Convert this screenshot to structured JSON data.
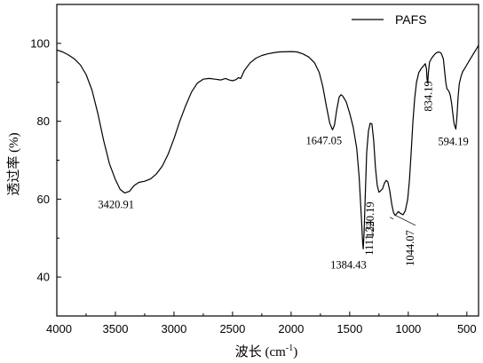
{
  "chart_data": {
    "type": "line",
    "xlabel": "波长 (cm",
    "xlabel_sup": "-1",
    "xlabel_close": ")",
    "ylabel": "透过率 (%)",
    "xlim": [
      4000,
      400
    ],
    "ylim": [
      30,
      110
    ],
    "xticks": [
      4000,
      3500,
      3000,
      2500,
      2000,
      1500,
      1000,
      500
    ],
    "yticks": [
      40,
      60,
      80,
      100
    ],
    "legend": {
      "position": "top-right"
    },
    "series": [
      {
        "name": "PAFS",
        "color": "#000000",
        "points": [
          [
            4000,
            98.3
          ],
          [
            3950,
            97.8
          ],
          [
            3900,
            97.0
          ],
          [
            3850,
            96.0
          ],
          [
            3800,
            94.5
          ],
          [
            3750,
            92.0
          ],
          [
            3700,
            88.0
          ],
          [
            3650,
            82.0
          ],
          [
            3600,
            75.0
          ],
          [
            3550,
            69.0
          ],
          [
            3500,
            65.0
          ],
          [
            3460,
            62.5
          ],
          [
            3420.91,
            61.6
          ],
          [
            3380,
            62.0
          ],
          [
            3340,
            63.5
          ],
          [
            3300,
            64.3
          ],
          [
            3250,
            64.6
          ],
          [
            3200,
            65.2
          ],
          [
            3150,
            66.5
          ],
          [
            3100,
            68.5
          ],
          [
            3050,
            71.5
          ],
          [
            3000,
            75.5
          ],
          [
            2950,
            80.0
          ],
          [
            2900,
            84.0
          ],
          [
            2850,
            87.5
          ],
          [
            2800,
            89.8
          ],
          [
            2750,
            90.8
          ],
          [
            2700,
            91.0
          ],
          [
            2650,
            90.8
          ],
          [
            2600,
            90.6
          ],
          [
            2560,
            91.0
          ],
          [
            2530,
            90.6
          ],
          [
            2500,
            90.4
          ],
          [
            2470,
            90.7
          ],
          [
            2450,
            91.2
          ],
          [
            2430,
            91.0
          ],
          [
            2400,
            93.0
          ],
          [
            2350,
            95.0
          ],
          [
            2300,
            96.2
          ],
          [
            2250,
            96.9
          ],
          [
            2200,
            97.3
          ],
          [
            2150,
            97.6
          ],
          [
            2100,
            97.8
          ],
          [
            2000,
            97.9
          ],
          [
            1950,
            97.8
          ],
          [
            1900,
            97.3
          ],
          [
            1850,
            96.5
          ],
          [
            1800,
            95.0
          ],
          [
            1760,
            92.5
          ],
          [
            1730,
            89.0
          ],
          [
            1700,
            84.0
          ],
          [
            1670,
            79.5
          ],
          [
            1647.05,
            77.8
          ],
          [
            1630,
            79.0
          ],
          [
            1610,
            83.0
          ],
          [
            1590,
            86.2
          ],
          [
            1575,
            86.8
          ],
          [
            1560,
            86.5
          ],
          [
            1530,
            85.0
          ],
          [
            1500,
            82.0
          ],
          [
            1470,
            78.5
          ],
          [
            1440,
            73.0
          ],
          [
            1420,
            66.0
          ],
          [
            1400,
            55.0
          ],
          [
            1390,
            49.0
          ],
          [
            1384.43,
            47.2
          ],
          [
            1378,
            51.0
          ],
          [
            1365,
            63.0
          ],
          [
            1355,
            72.0
          ],
          [
            1340,
            77.5
          ],
          [
            1325,
            79.5
          ],
          [
            1310,
            79.3
          ],
          [
            1295,
            75.0
          ],
          [
            1280,
            68.0
          ],
          [
            1265,
            63.5
          ],
          [
            1250,
            61.8
          ],
          [
            1240,
            62.0
          ],
          [
            1225,
            62.5
          ],
          [
            1220.19,
            62.6
          ],
          [
            1205,
            64.0
          ],
          [
            1190,
            64.8
          ],
          [
            1175,
            64.5
          ],
          [
            1160,
            62.5
          ],
          [
            1140,
            58.5
          ],
          [
            1125,
            56.5
          ],
          [
            1111.34,
            55.8
          ],
          [
            1100,
            56.2
          ],
          [
            1085,
            56.8
          ],
          [
            1065,
            56.3
          ],
          [
            1044.07,
            56.0
          ],
          [
            1025,
            57.0
          ],
          [
            1005,
            60.0
          ],
          [
            990,
            65.0
          ],
          [
            975,
            72.0
          ],
          [
            960,
            80.0
          ],
          [
            945,
            86.0
          ],
          [
            930,
            90.0
          ],
          [
            910,
            92.5
          ],
          [
            890,
            93.5
          ],
          [
            870,
            94.2
          ],
          [
            855,
            94.8
          ],
          [
            845,
            93.5
          ],
          [
            840,
            91.0
          ],
          [
            834.19,
            89.8
          ],
          [
            828,
            92.5
          ],
          [
            818,
            95.2
          ],
          [
            800,
            96.2
          ],
          [
            780,
            97.0
          ],
          [
            760,
            97.6
          ],
          [
            740,
            97.8
          ],
          [
            720,
            97.5
          ],
          [
            700,
            96.0
          ],
          [
            690,
            93.0
          ],
          [
            680,
            90.0
          ],
          [
            670,
            88.3
          ],
          [
            660,
            88.0
          ],
          [
            650,
            87.5
          ],
          [
            640,
            86.5
          ],
          [
            630,
            84.5
          ],
          [
            620,
            82.0
          ],
          [
            610,
            79.5
          ],
          [
            600,
            78.5
          ],
          [
            594.19,
            78.0
          ],
          [
            585,
            81.0
          ],
          [
            575,
            86.0
          ],
          [
            565,
            89.5
          ],
          [
            550,
            91.5
          ],
          [
            535,
            92.8
          ],
          [
            520,
            93.5
          ],
          [
            500,
            94.5
          ],
          [
            480,
            95.5
          ],
          [
            460,
            96.5
          ],
          [
            440,
            97.5
          ],
          [
            420,
            98.5
          ],
          [
            400,
            99.5
          ]
        ]
      }
    ],
    "annotations": [
      {
        "text": "3420.91",
        "x": 3420.91,
        "y": 61.6,
        "rotate": false
      },
      {
        "text": "1647.05",
        "x": 1647.05,
        "y": 77.8,
        "rotate": false
      },
      {
        "text": "1384.43",
        "x": 1384.43,
        "y": 47.2,
        "rotate": false
      },
      {
        "text": "1220.19",
        "x": 1220.19,
        "y": 62.6,
        "rotate": true
      },
      {
        "text": "1111.34",
        "x": 1111.34,
        "y": 55.8,
        "rotate": true
      },
      {
        "text": "1044.07",
        "x": 1044.07,
        "y": 56.0,
        "rotate": true
      },
      {
        "text": "834.19",
        "x": 834.19,
        "y": 89.8,
        "rotate": true
      },
      {
        "text": "594.19",
        "x": 594.19,
        "y": 78.0,
        "rotate": false
      }
    ]
  }
}
